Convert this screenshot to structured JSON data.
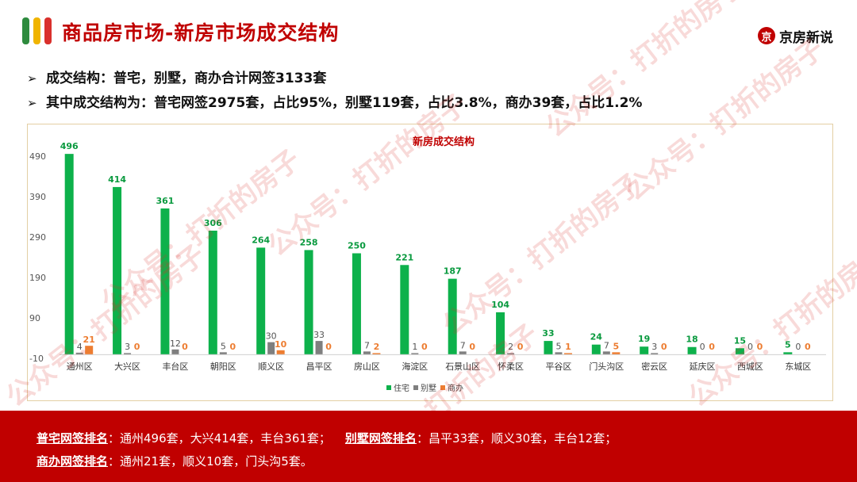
{
  "header": {
    "title": "商品房市场-新房市场成交结构",
    "brand": "京房新说",
    "brand_mark": "京",
    "colors": {
      "accent": "#c00000",
      "bar1": "#2e8b3e",
      "bar2": "#f0b400",
      "bar3": "#d9302c"
    }
  },
  "bullets": [
    "成交结构：普宅，别墅，商办合计网签3133套",
    "其中成交结构为：普宅网签2975套，占比95%，别墅119套，占比3.8%，商办39套，占比1.2%"
  ],
  "bullet_icon": "arrow-right-icon",
  "watermark": "公众号：打折的房子",
  "chart_data": {
    "type": "bar",
    "title": "新房成交结构",
    "categories": [
      "通州区",
      "大兴区",
      "丰台区",
      "朝阳区",
      "顺义区",
      "昌平区",
      "房山区",
      "海淀区",
      "石景山区",
      "怀柔区",
      "平谷区",
      "门头沟区",
      "密云区",
      "延庆区",
      "西城区",
      "东城区"
    ],
    "series": [
      {
        "name": "住宅",
        "color": "#0db14b",
        "values": [
          496,
          414,
          361,
          306,
          264,
          258,
          250,
          221,
          187,
          104,
          33,
          24,
          19,
          18,
          15,
          5
        ]
      },
      {
        "name": "别墅",
        "color": "#7f7f7f",
        "values": [
          4,
          3,
          12,
          5,
          30,
          33,
          7,
          1,
          7,
          2,
          5,
          7,
          3,
          0,
          0,
          0
        ]
      },
      {
        "name": "商办",
        "color": "#ed7d31",
        "values": [
          21,
          0,
          0,
          0,
          10,
          0,
          2,
          0,
          0,
          0,
          1,
          5,
          0,
          0,
          0,
          0
        ]
      }
    ],
    "yticks": [
      "490",
      "390",
      "290",
      "190",
      "90",
      "-10"
    ],
    "ylim": [
      -10,
      510
    ],
    "legend": "bottom-center",
    "grid": false
  },
  "footer": {
    "line1_label": "普宅网签排名",
    "line1_text": "：通州496套，大兴414套，丰台361套；",
    "line1b_label": "别墅网签排名",
    "line1b_text": "：昌平33套，顺义30套，丰台12套；",
    "line2_label": "商办网签排名",
    "line2_text": "：通州21套，顺义10套，门头沟5套。"
  }
}
